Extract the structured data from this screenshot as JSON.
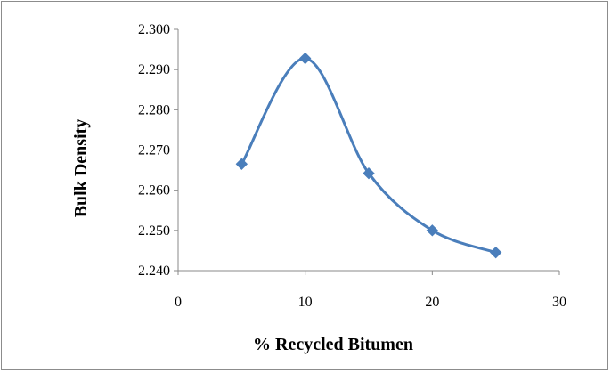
{
  "chart_data": {
    "type": "line",
    "title": "",
    "xlabel": "% Recycled Bitumen",
    "ylabel": "Bulk  Density",
    "xlim": [
      0,
      30
    ],
    "ylim": [
      2.24,
      2.3
    ],
    "x_ticks": [
      "0",
      "10",
      "20",
      "30"
    ],
    "y_ticks": [
      "2.240",
      "2.250",
      "2.260",
      "2.270",
      "2.280",
      "2.290",
      "2.300"
    ],
    "grid": false,
    "legend": "none",
    "smooth": true,
    "marker": "diamond",
    "series_color": "#4a7ebb",
    "series": [
      {
        "x": [
          5,
          10,
          15,
          20,
          25
        ],
        "values": [
          2.2665,
          2.2928,
          2.2642,
          2.25,
          2.2445
        ]
      }
    ]
  }
}
